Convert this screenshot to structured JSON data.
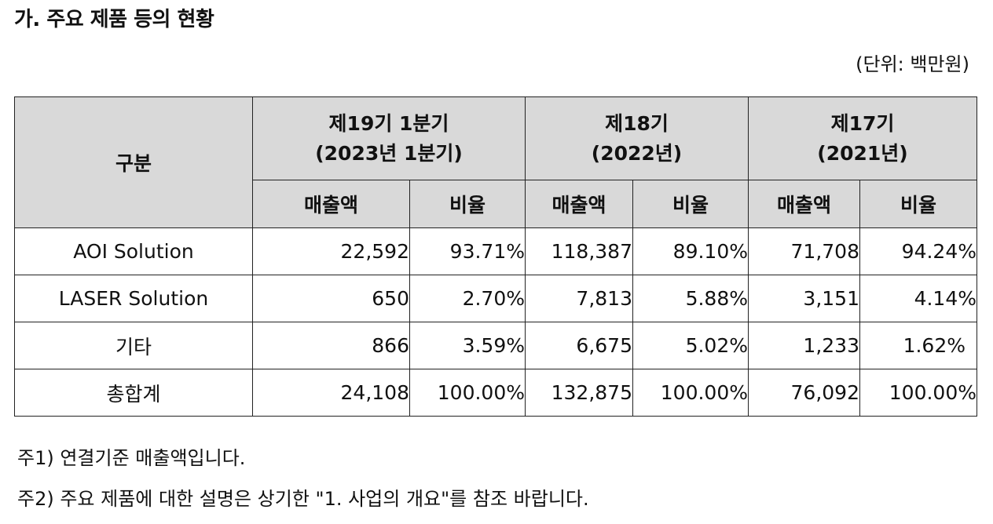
{
  "title": "가. 주요 제품 등의 현황",
  "unit": "(단위: 백만원)",
  "table": {
    "header_category": "구분",
    "periods": [
      {
        "line1": "제19기 1분기",
        "line2": "(2023년 1분기)"
      },
      {
        "line1": "제18기",
        "line2": "(2022년)"
      },
      {
        "line1": "제17기",
        "line2": "(2021년)"
      }
    ],
    "sub_headers": {
      "sales": "매출액",
      "ratio": "비율"
    },
    "rows": [
      {
        "name": "AOI Solution",
        "values": [
          "22,592",
          "93.71%",
          "118,387",
          "89.10%",
          "71,708",
          "94.24%"
        ]
      },
      {
        "name": "LASER Solution",
        "values": [
          "650",
          "2.70%",
          "7,813",
          "5.88%",
          "3,151",
          "4.14%"
        ]
      },
      {
        "name": "기타",
        "values": [
          "866",
          "3.59%",
          "6,675",
          "5.02%",
          "1,233",
          "1.62%"
        ]
      },
      {
        "name": "총합계",
        "values": [
          "24,108",
          "100.00%",
          "132,875",
          "100.00%",
          "76,092",
          "100.00%"
        ]
      }
    ]
  },
  "notes": [
    "주1) 연결기준 매출액입니다.",
    "주2) 주요 제품에 대한 설명은 상기한 \"1. 사업의  개요\"를 참조 바랍니다."
  ]
}
